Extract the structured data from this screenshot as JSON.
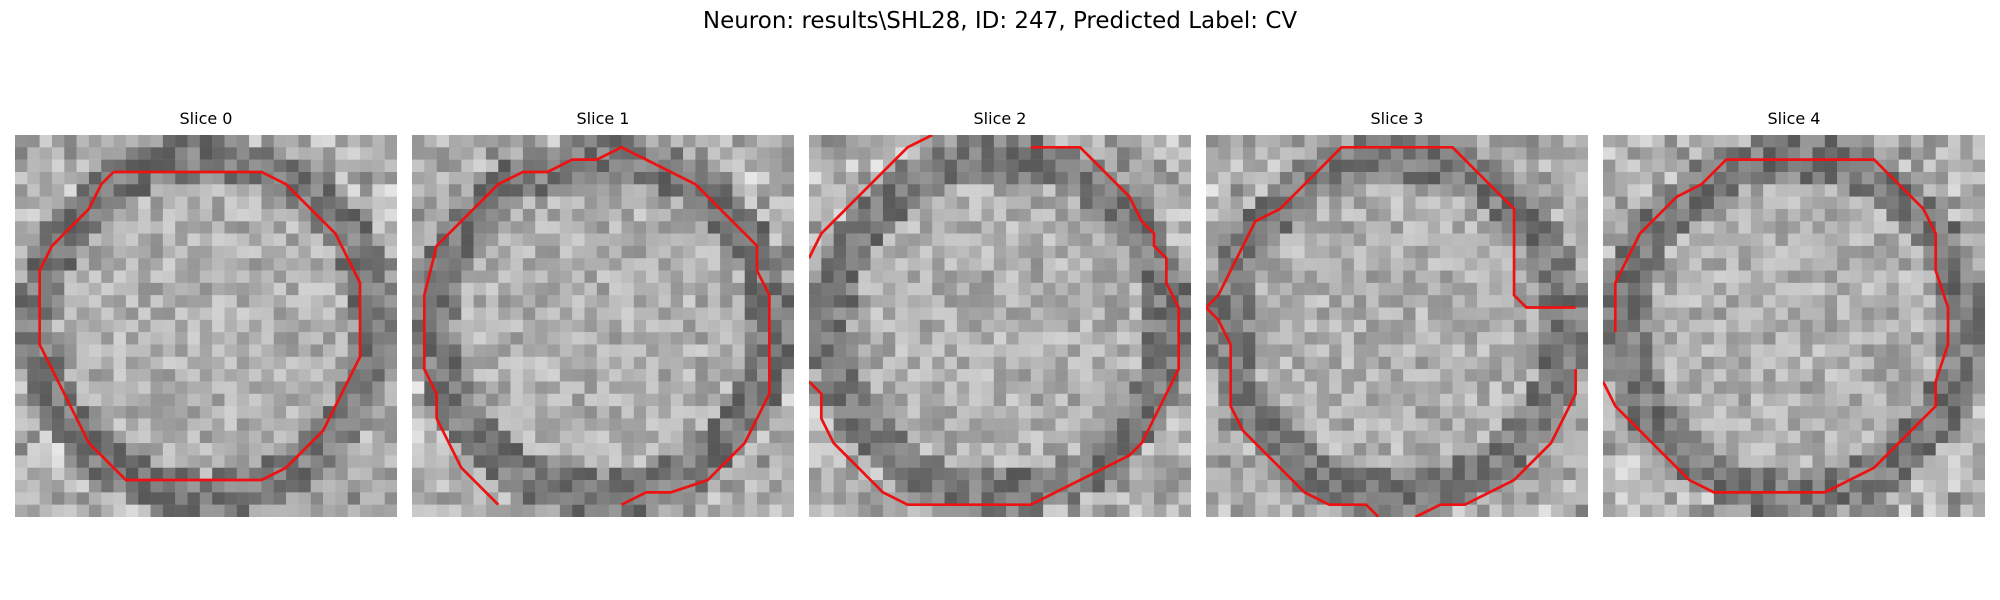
{
  "figure": {
    "title": "Neuron: results\\SHL28, ID: 247, Predicted Label: CV"
  },
  "colors": {
    "contour": "#ee1111",
    "colormap": "gray"
  },
  "slices": [
    {
      "title": "Slice 0"
    },
    {
      "title": "Slice 1"
    },
    {
      "title": "Slice 2"
    },
    {
      "title": "Slice 3"
    },
    {
      "title": "Slice 4"
    }
  ]
}
